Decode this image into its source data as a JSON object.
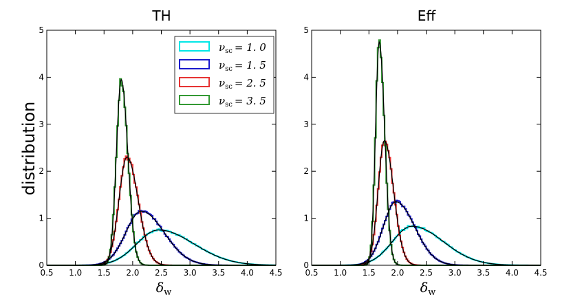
{
  "figure": {
    "ylabel": "distribution",
    "xlabel_main": "δ",
    "xlabel_sub": "w"
  },
  "chart_data": [
    {
      "type": "line",
      "title": "TH",
      "xlabel": "δ_w",
      "ylabel": "distribution",
      "xlim": [
        0.5,
        4.5
      ],
      "ylim": [
        0,
        5
      ],
      "xticks": [
        "0.5",
        "1.0",
        "1.5",
        "2.0",
        "2.5",
        "3.0",
        "3.5",
        "4.0",
        "4.5"
      ],
      "yticks": [
        "0",
        "1",
        "2",
        "3",
        "4",
        "5"
      ],
      "legend": {
        "placement": "top-right",
        "entries": [
          {
            "symbol": "ν",
            "subscript": "sc",
            "value": "= 1. 0",
            "color": "#00e6e6"
          },
          {
            "symbol": "ν",
            "subscript": "sc",
            "value": "= 1. 5",
            "color": "#1a1acc"
          },
          {
            "symbol": "ν",
            "subscript": "sc",
            "value": "= 2. 5",
            "color": "#e63333"
          },
          {
            "symbol": "ν",
            "subscript": "sc",
            "value": "= 3. 5",
            "color": "#339933"
          }
        ]
      },
      "series": [
        {
          "name": "ν_sc = 1.0",
          "color": "#00e6e6",
          "peak_x": 2.45,
          "peak_y": 0.75,
          "sigma_left": 0.38,
          "sigma_right": 0.62
        },
        {
          "name": "ν_sc = 1.5",
          "color": "#1a1acc",
          "peak_x": 2.15,
          "peak_y": 1.15,
          "sigma_left": 0.27,
          "sigma_right": 0.4
        },
        {
          "name": "ν_sc = 2.5",
          "color": "#e63333",
          "peak_x": 1.9,
          "peak_y": 2.3,
          "sigma_left": 0.14,
          "sigma_right": 0.195
        },
        {
          "name": "ν_sc = 3.5",
          "color": "#339933",
          "peak_x": 1.8,
          "peak_y": 3.95,
          "sigma_left": 0.085,
          "sigma_right": 0.115
        }
      ],
      "fit_color": "#000000"
    },
    {
      "type": "line",
      "title": "Eff",
      "xlabel": "δ_w",
      "ylabel": "distribution",
      "xlim": [
        0.5,
        4.5
      ],
      "ylim": [
        0,
        5
      ],
      "xticks": [
        "0.5",
        "1.0",
        "1.5",
        "2.0",
        "2.5",
        "3.0",
        "3.5",
        "4.0",
        "4.5"
      ],
      "yticks": [
        "0",
        "1",
        "2",
        "3",
        "4",
        "5"
      ],
      "series": [
        {
          "name": "ν_sc = 1.0",
          "color": "#00e6e6",
          "peak_x": 2.25,
          "peak_y": 0.83,
          "sigma_left": 0.34,
          "sigma_right": 0.55
        },
        {
          "name": "ν_sc = 1.5",
          "color": "#1a1acc",
          "peak_x": 1.97,
          "peak_y": 1.35,
          "sigma_left": 0.22,
          "sigma_right": 0.33
        },
        {
          "name": "ν_sc = 2.5",
          "color": "#e63333",
          "peak_x": 1.77,
          "peak_y": 2.65,
          "sigma_left": 0.11,
          "sigma_right": 0.16
        },
        {
          "name": "ν_sc = 3.5",
          "color": "#339933",
          "peak_x": 1.68,
          "peak_y": 4.75,
          "sigma_left": 0.065,
          "sigma_right": 0.095
        }
      ],
      "fit_color": "#000000"
    }
  ]
}
